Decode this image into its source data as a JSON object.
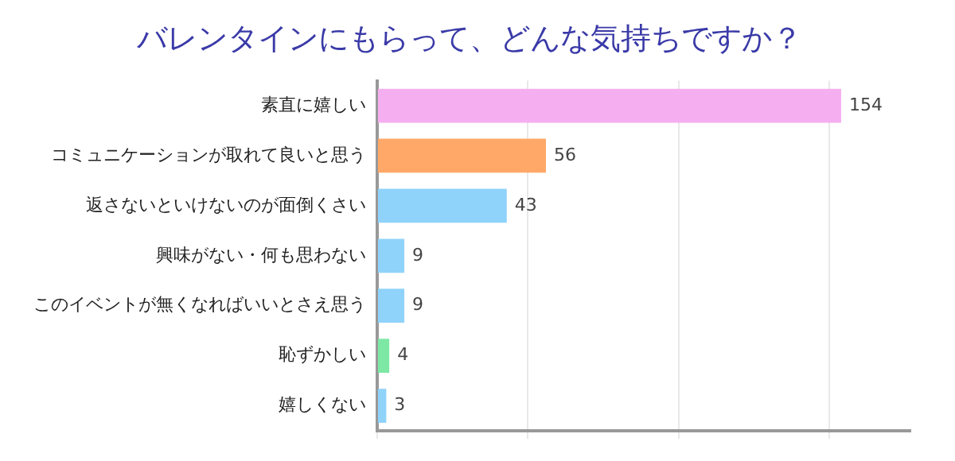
{
  "chart_data": {
    "type": "bar",
    "orientation": "horizontal",
    "title": "バレンタインにもらって、どんな気持ちですか？",
    "categories": [
      "素直に嬉しい",
      "コミュニケーションが取れて良いと思う",
      "返さないといけないのが面倒くさい",
      "興味がない・何も思わない",
      "このイベントが無くなればいいとさえ思う",
      "恥ずかしい",
      "嬉しくない"
    ],
    "values": [
      154,
      56,
      43,
      9,
      9,
      4,
      3
    ],
    "colors": [
      "#f5aef0",
      "#ffa868",
      "#8fd3fb",
      "#8fd3fb",
      "#8fd3fb",
      "#7de8a4",
      "#8fd3fb"
    ],
    "xlim": [
      0,
      177
    ],
    "xticks": [
      {
        "value": 0,
        "label": null
      },
      {
        "value": 50,
        "label": null
      },
      {
        "value": 100,
        "label": null
      },
      {
        "value": 150,
        "label": null
      }
    ],
    "grid": "x",
    "tick_labels": "y",
    "data_labels": true,
    "legend": false
  }
}
